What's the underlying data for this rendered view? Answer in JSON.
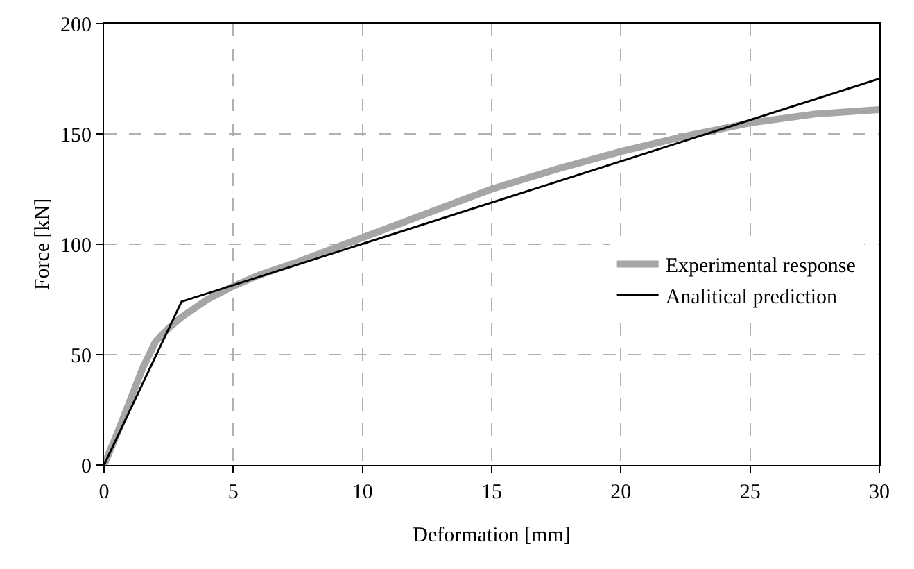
{
  "chart_data": {
    "type": "line",
    "xlabel": "Deformation [mm]",
    "ylabel": "Force [kN]",
    "xlim": [
      0,
      30
    ],
    "xticks": [
      0,
      5,
      10,
      15,
      20,
      25,
      30
    ],
    "ylim": [
      0,
      200
    ],
    "yticks": [
      0,
      50,
      100,
      150,
      200
    ],
    "grid": true,
    "legend": "right",
    "marker": "none",
    "line_style": "solid",
    "series": [
      {
        "name": "Experimental response",
        "color": "#a6a6a6",
        "x": [
          0,
          0.5,
          1,
          1.5,
          2,
          2.5,
          3,
          4,
          5,
          6,
          7.5,
          10,
          12.5,
          15,
          17.5,
          20,
          22.5,
          25,
          27.5,
          30
        ],
        "values": [
          0,
          14,
          29,
          44,
          56,
          62,
          67,
          75,
          81,
          86,
          92,
          103,
          114,
          125,
          134,
          142,
          149,
          155,
          159,
          161
        ]
      },
      {
        "name": "Analitical prediction",
        "color": "#000000",
        "x": [
          0,
          3,
          30
        ],
        "values": [
          0,
          74,
          175
        ]
      }
    ]
  }
}
